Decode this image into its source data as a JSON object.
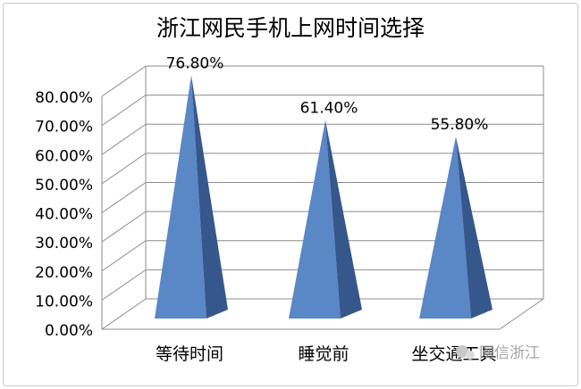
{
  "chart_data": {
    "type": "bar",
    "title": "浙江网民手机上网时间选择",
    "categories": [
      "等待时间",
      "睡觉前",
      "坐交通工具"
    ],
    "values": [
      76.8,
      61.4,
      55.8
    ],
    "data_labels": [
      "76.80%",
      "61.40%",
      "55.80%"
    ],
    "ylim": [
      0,
      80
    ],
    "yticks": [
      "0.00%",
      "10.00%",
      "20.00%",
      "30.00%",
      "40.00%",
      "50.00%",
      "60.00%",
      "70.00%",
      "80.00%"
    ],
    "grid": true,
    "style": "3d-pyramid",
    "colors": {
      "front": "#5a87c6",
      "side": "#36578c",
      "grid": "#8c8c8c",
      "text": "#000000"
    }
  },
  "watermark": "网信浙江"
}
